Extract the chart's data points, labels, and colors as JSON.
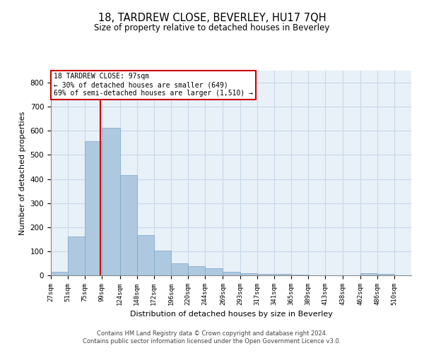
{
  "title": "18, TARDREW CLOSE, BEVERLEY, HU17 7QH",
  "subtitle": "Size of property relative to detached houses in Beverley",
  "xlabel": "Distribution of detached houses by size in Beverley",
  "ylabel": "Number of detached properties",
  "footer_line1": "Contains HM Land Registry data © Crown copyright and database right 2024.",
  "footer_line2": "Contains public sector information licensed under the Open Government Licence v3.0.",
  "annotation_line1": "18 TARDREW CLOSE: 97sqm",
  "annotation_line2": "← 30% of detached houses are smaller (649)",
  "annotation_line3": "69% of semi-detached houses are larger (1,510) →",
  "property_size": 97,
  "bar_left_edges": [
    27,
    51,
    75,
    99,
    124,
    148,
    172,
    196,
    220,
    244,
    269,
    293,
    317,
    341,
    365,
    389,
    413,
    438,
    462,
    486
  ],
  "bar_widths": [
    24,
    24,
    24,
    25,
    24,
    24,
    24,
    24,
    24,
    25,
    24,
    24,
    24,
    24,
    24,
    24,
    25,
    24,
    24,
    24
  ],
  "bar_heights": [
    15,
    162,
    557,
    612,
    415,
    168,
    103,
    50,
    37,
    30,
    15,
    10,
    7,
    5,
    4,
    0,
    0,
    0,
    8,
    7
  ],
  "bar_color": "#aec8e0",
  "bar_edge_color": "#7ba8c8",
  "vline_color": "#cc0000",
  "annotation_box_edge_color": "#cc0000",
  "grid_color": "#c8d8e8",
  "background_color": "#e8f0f8",
  "ylim": [
    0,
    850
  ],
  "yticks": [
    0,
    100,
    200,
    300,
    400,
    500,
    600,
    700,
    800
  ],
  "tick_labels": [
    "27sqm",
    "51sqm",
    "75sqm",
    "99sqm",
    "124sqm",
    "148sqm",
    "172sqm",
    "196sqm",
    "220sqm",
    "244sqm",
    "269sqm",
    "293sqm",
    "317sqm",
    "341sqm",
    "365sqm",
    "389sqm",
    "413sqm",
    "438sqm",
    "462sqm",
    "486sqm",
    "510sqm"
  ]
}
